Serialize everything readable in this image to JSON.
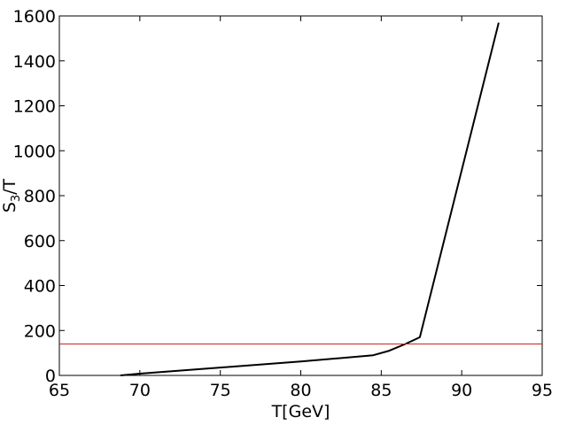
{
  "chart_data": {
    "type": "line",
    "xlabel": "T[GeV]",
    "ylabel": {
      "base": "S",
      "sub": "3",
      "rest": "/T"
    },
    "xlim": [
      65,
      95
    ],
    "ylim": [
      0,
      1600
    ],
    "x_ticks": [
      65,
      70,
      75,
      80,
      85,
      90,
      95
    ],
    "y_ticks": [
      0,
      200,
      400,
      600,
      800,
      1000,
      1200,
      1400,
      1600
    ],
    "grid": false,
    "series": [
      {
        "color": "#000000",
        "x": [
          68.8,
          70.0,
          75.0,
          80.0,
          84.5,
          85.5,
          86.5,
          87.4,
          92.3
        ],
        "y": [
          0,
          8,
          35,
          62,
          90,
          110,
          140,
          170,
          1570
        ]
      }
    ],
    "hlines": [
      {
        "y": 140,
        "color": "#cc2222"
      }
    ]
  }
}
